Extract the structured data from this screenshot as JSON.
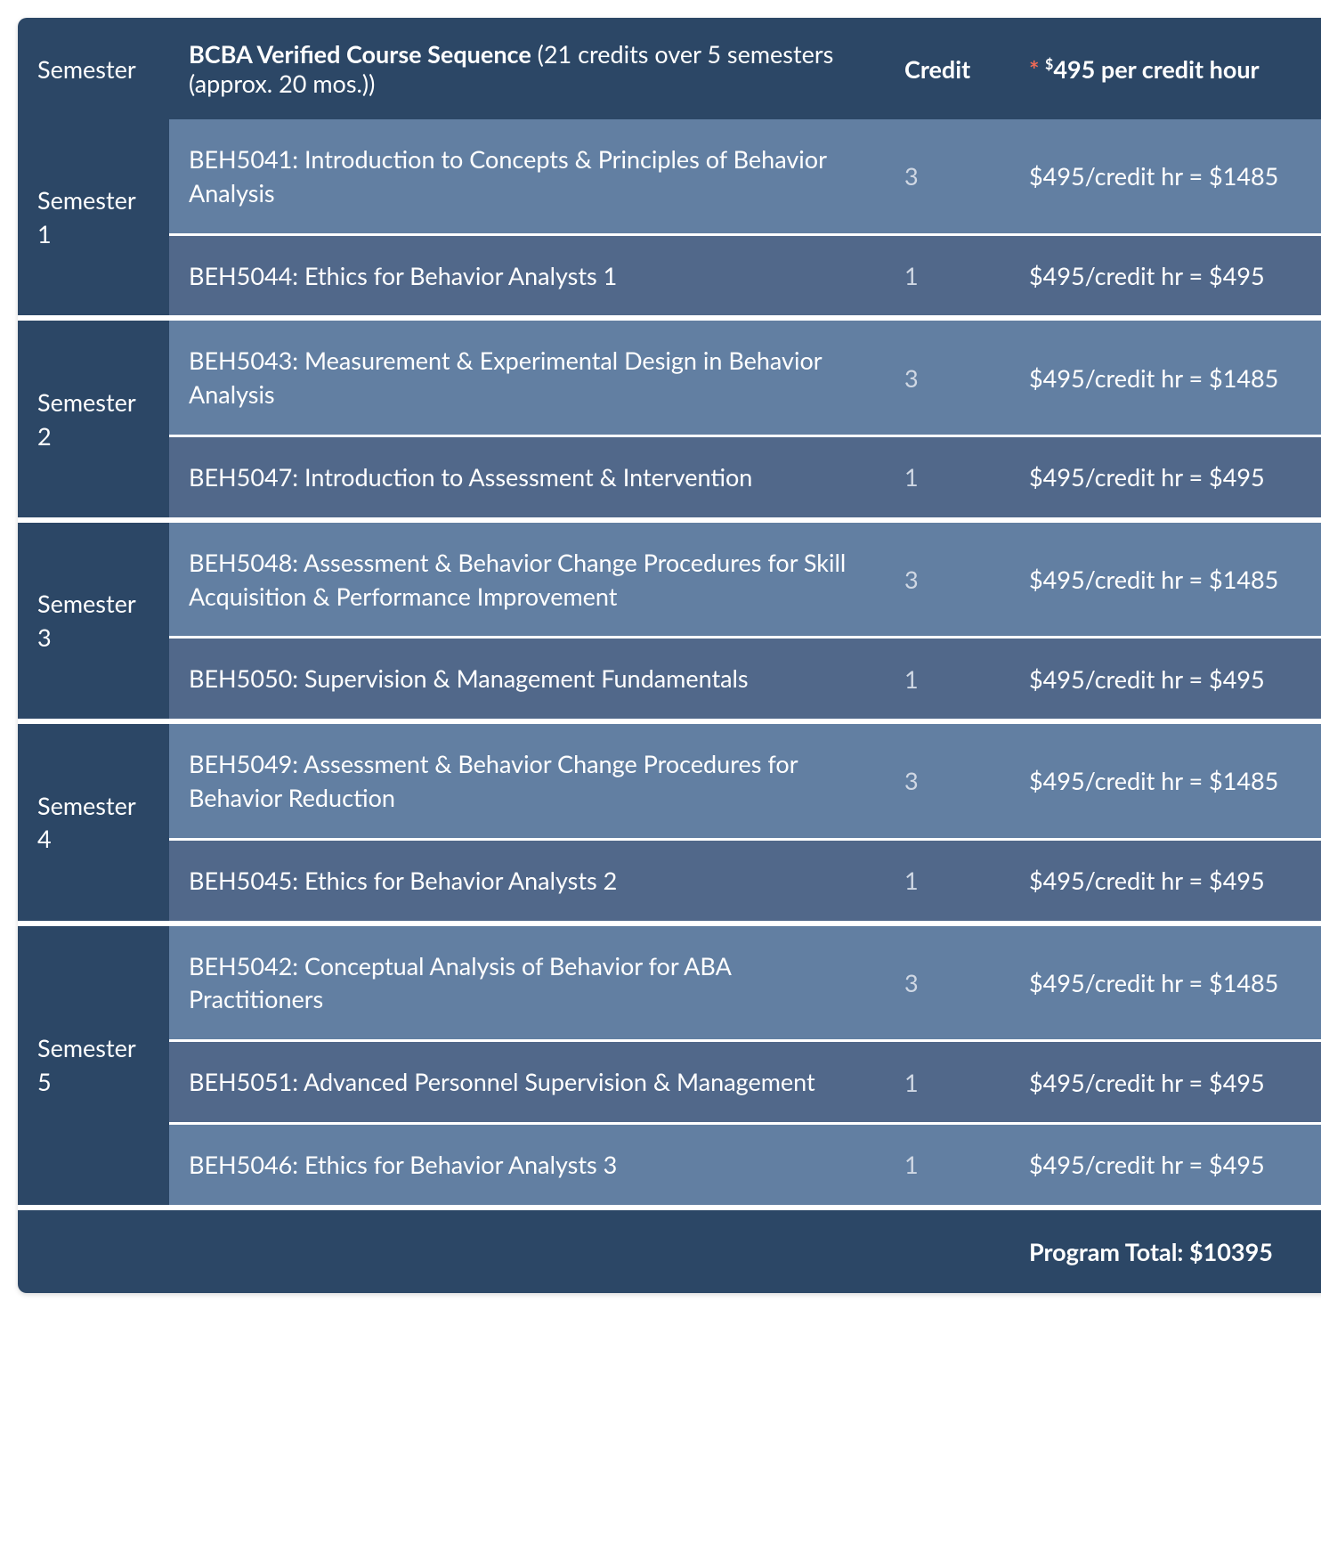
{
  "colors": {
    "header_bg": "#2c4766",
    "row_alt_a": "#627fa2",
    "row_alt_b": "#51688a",
    "asterisk": "#f26a55",
    "text": "#ffffff",
    "credit_text": "#d0d8e4",
    "divider": "#ffffff"
  },
  "header": {
    "semester": "Semester",
    "course_bold": "BCBA Verified Course Sequence",
    "course_rest": " (21 credits over 5 semesters (approx. 20 mos.))",
    "credit": "Credit",
    "price_asterisk": "*",
    "price_dollar": "$",
    "price_text": "495 per credit hour"
  },
  "semesters": [
    {
      "label": "Semester 1",
      "courses": [
        {
          "title": "BEH5041: Introduction to Concepts & Principles of Behavior Analysis",
          "credit": "3",
          "price": "$495/credit hr = $1485"
        },
        {
          "title": "BEH5044: Ethics for Behavior Analysts 1",
          "credit": "1",
          "price": "$495/credit hr = $495"
        }
      ]
    },
    {
      "label": "Semester 2",
      "courses": [
        {
          "title": "BEH5043: Measurement & Experimental Design in Behavior Analysis",
          "credit": "3",
          "price": "$495/credit hr = $1485"
        },
        {
          "title": "BEH5047: Introduction to Assessment & Intervention",
          "credit": "1",
          "price": "$495/credit hr = $495"
        }
      ]
    },
    {
      "label": "Semester 3",
      "courses": [
        {
          "title": "BEH5048: Assessment & Behavior Change Procedures for Skill Acquisition & Performance Improvement",
          "credit": "3",
          "price": "$495/credit hr = $1485"
        },
        {
          "title": "BEH5050: Supervision & Management Fundamentals",
          "credit": "1",
          "price": "$495/credit hr = $495"
        }
      ]
    },
    {
      "label": "Semester 4",
      "courses": [
        {
          "title": "BEH5049: Assessment & Behavior Change Procedures for Behavior Reduction",
          "credit": "3",
          "price": "$495/credit hr = $1485"
        },
        {
          "title": "BEH5045: Ethics for Behavior Analysts 2",
          "credit": "1",
          "price": "$495/credit hr = $495"
        }
      ]
    },
    {
      "label": "Semester 5",
      "courses": [
        {
          "title": "BEH5042: Conceptual Analysis of Behavior for ABA Practitioners",
          "credit": "3",
          "price": "$495/credit hr = $1485"
        },
        {
          "title": "BEH5051: Advanced Personnel Supervision & Management",
          "credit": "1",
          "price": "$495/credit hr = $495"
        },
        {
          "title": "BEH5046: Ethics for Behavior Analysts 3",
          "credit": "1",
          "price": "$495/credit hr = $495"
        }
      ]
    }
  ],
  "footer": {
    "total": "Program Total: $10395"
  }
}
